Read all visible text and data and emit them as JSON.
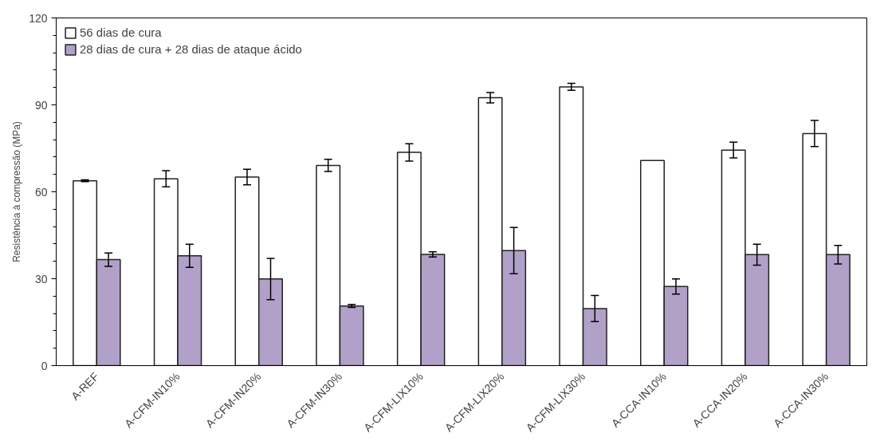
{
  "chart_data": {
    "type": "bar",
    "ylabel": "Resistência à compressão (MPa)",
    "categories": [
      "A-REF",
      "A-CFM-IN10%",
      "A-CFM-IN20%",
      "A-CFM-IN30%",
      "A-CFM-LIX10%",
      "A-CFM-LIX20%",
      "A-CFM-LIX30%",
      "A-CCA-IN10%",
      "A-CCA-IN20%",
      "A-CCA-IN30%"
    ],
    "series": [
      {
        "name": "56 dias de cura",
        "color": "#ffffff",
        "values": [
          63.8,
          64.5,
          65.1,
          69.1,
          73.6,
          92.5,
          96.2,
          70.8,
          74.4,
          80.1
        ],
        "errors": [
          0.3,
          2.8,
          2.7,
          2.1,
          3.0,
          1.8,
          1.2,
          null,
          2.7,
          4.5
        ]
      },
      {
        "name": "28 dias de cura + 28 dias de ataque ácido",
        "color": "#b1a1c8",
        "values": [
          36.6,
          37.9,
          29.9,
          20.6,
          38.4,
          39.7,
          19.7,
          27.3,
          38.3,
          38.3
        ],
        "errors": [
          2.3,
          4.0,
          7.1,
          0.5,
          0.9,
          8.0,
          4.5,
          2.6,
          3.6,
          3.2
        ]
      }
    ],
    "ylim": [
      0,
      120
    ],
    "yticks": [
      0,
      30,
      60,
      90,
      120
    ],
    "grid": false,
    "legend": "top left"
  }
}
